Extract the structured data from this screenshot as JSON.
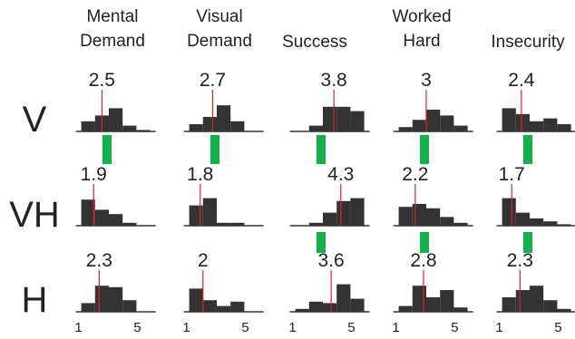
{
  "chart_data": {
    "type": "bar",
    "description_rows": [
      "V",
      "VH",
      "H"
    ],
    "columns": [
      {
        "title_lines": [
          "Mental",
          "Demand"
        ]
      },
      {
        "title_lines": [
          "Visual",
          "Demand"
        ]
      },
      {
        "title_lines": [
          "Success"
        ]
      },
      {
        "title_lines": [
          "Worked",
          "Hard"
        ]
      },
      {
        "title_lines": [
          "Insecurity"
        ]
      }
    ],
    "x": [
      1,
      2,
      3,
      4,
      5
    ],
    "x_tick_labels": [
      "1",
      "5"
    ],
    "panels": [
      [
        {
          "mean": 2.5,
          "mean_label": "2.5",
          "values": [
            0.35,
            0.55,
            0.8,
            0.2,
            0.05
          ]
        },
        {
          "mean": 2.7,
          "mean_label": "2.7",
          "values": [
            0.25,
            0.5,
            0.9,
            0.35,
            0.0
          ]
        },
        {
          "mean": 3.8,
          "mean_label": "3.8",
          "values": [
            0.0,
            0.2,
            0.85,
            0.85,
            0.7
          ]
        },
        {
          "mean": 3.0,
          "mean_label": "3",
          "values": [
            0.15,
            0.4,
            0.75,
            0.55,
            0.2
          ]
        },
        {
          "mean": 2.4,
          "mean_label": "2.4",
          "values": [
            0.8,
            0.6,
            0.35,
            0.45,
            0.25
          ]
        }
      ],
      [
        {
          "mean": 1.9,
          "mean_label": "1.9",
          "values": [
            0.9,
            0.55,
            0.4,
            0.1,
            0.0
          ]
        },
        {
          "mean": 1.8,
          "mean_label": "1.8",
          "values": [
            0.7,
            0.95,
            0.1,
            0.1,
            0.0
          ]
        },
        {
          "mean": 4.3,
          "mean_label": "4.3",
          "values": [
            0.0,
            0.1,
            0.45,
            0.85,
            0.95
          ]
        },
        {
          "mean": 2.2,
          "mean_label": "2.2",
          "values": [
            0.65,
            0.75,
            0.6,
            0.3,
            0.1
          ]
        },
        {
          "mean": 1.7,
          "mean_label": "1.7",
          "values": [
            0.95,
            0.45,
            0.25,
            0.15,
            0.05
          ]
        }
      ],
      [
        {
          "mean": 2.3,
          "mean_label": "2.3",
          "values": [
            0.3,
            0.9,
            0.85,
            0.4,
            0.0
          ]
        },
        {
          "mean": 2.0,
          "mean_label": "2",
          "values": [
            0.8,
            0.4,
            0.2,
            0.35,
            0.0
          ]
        },
        {
          "mean": 3.6,
          "mean_label": "3.6",
          "values": [
            0.1,
            0.35,
            0.3,
            0.95,
            0.45
          ]
        },
        {
          "mean": 2.8,
          "mean_label": "2.8",
          "values": [
            0.2,
            0.9,
            0.5,
            0.75,
            0.15
          ]
        },
        {
          "mean": 2.3,
          "mean_label": "2.3",
          "values": [
            0.5,
            0.75,
            0.9,
            0.4,
            0.1
          ]
        }
      ]
    ],
    "significance_markers": [
      {
        "between": [
          "V",
          "VH"
        ],
        "columns": [
          0,
          1,
          2,
          3,
          4
        ]
      },
      {
        "between": [
          "VH",
          "H"
        ],
        "columns": [
          2,
          3,
          4
        ]
      }
    ],
    "colors": {
      "bar": "#333333",
      "mean_line": "#e0202a",
      "marker": "#12b24a",
      "text": "#222222"
    }
  }
}
